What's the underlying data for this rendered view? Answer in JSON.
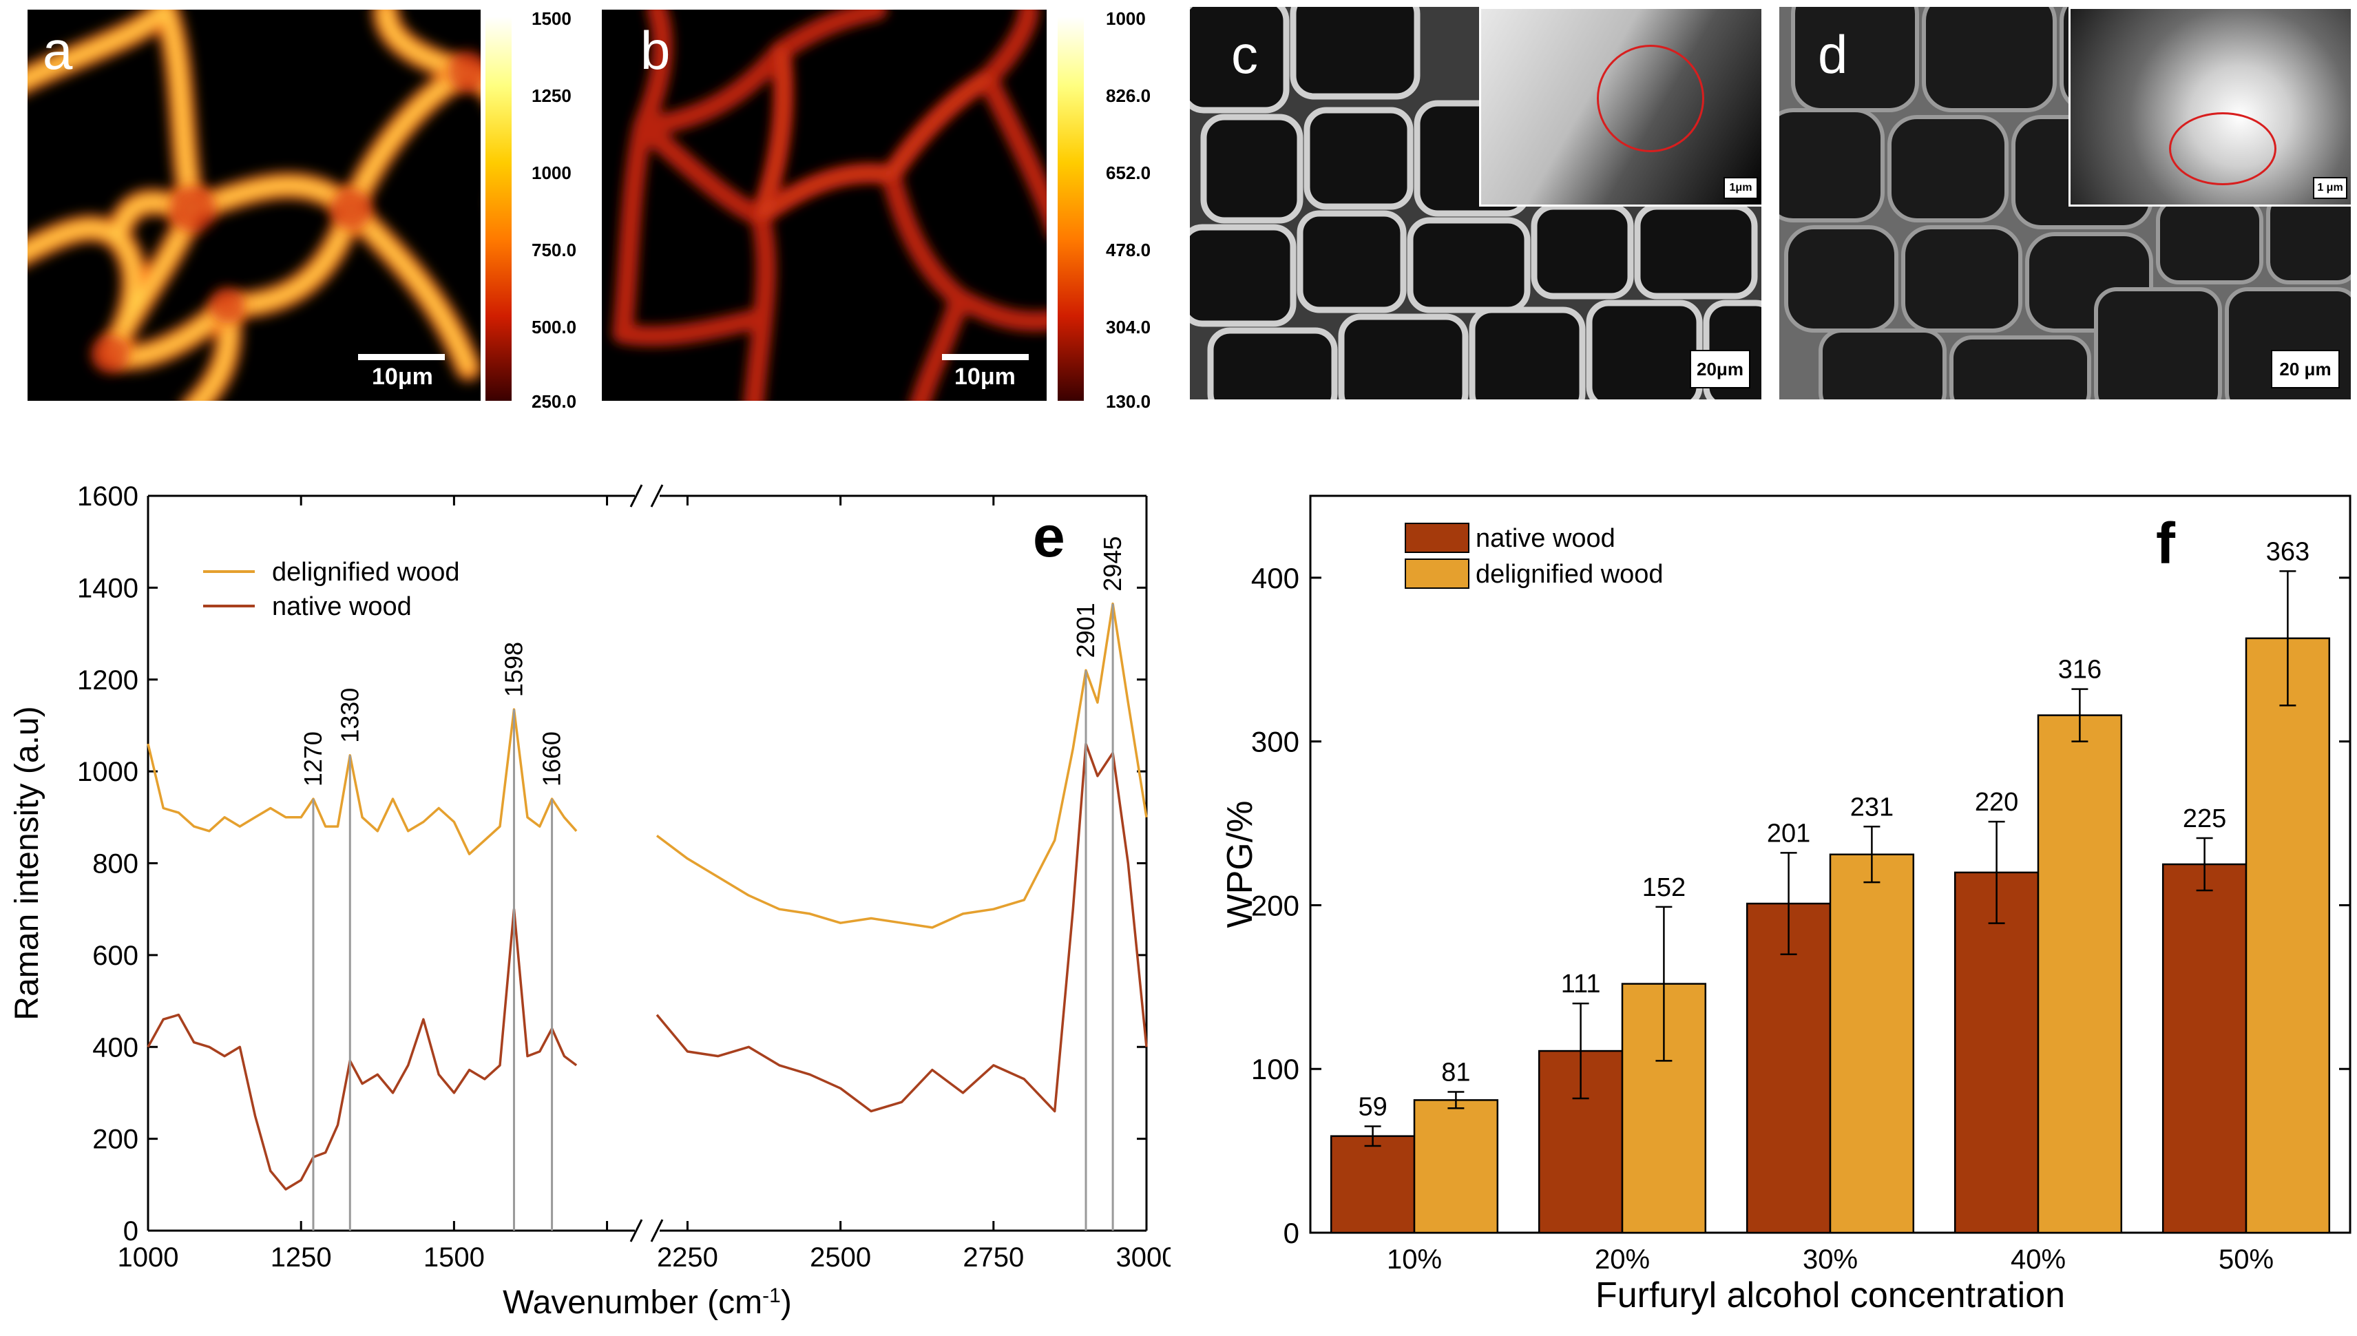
{
  "panels": {
    "a": {
      "letter": "a",
      "scalebar": "10μm",
      "colorbar_ticks": [
        "1500",
        "1250",
        "1000",
        "750.0",
        "500.0",
        "250.0"
      ]
    },
    "b": {
      "letter": "b",
      "scalebar": "10μm",
      "colorbar_ticks": [
        "1000",
        "826.0",
        "652.0",
        "478.0",
        "304.0",
        "130.0"
      ]
    },
    "c": {
      "letter": "c",
      "scalebar": "20μm",
      "inset_scalebar": "1μm"
    },
    "d": {
      "letter": "d",
      "scalebar": "20 μm",
      "inset_scalebar": "1 μm"
    }
  },
  "colors": {
    "native": "#a53a0c",
    "delignified": "#e5a02e",
    "native_line": "#a8401e",
    "delignified_line": "#e5a02e",
    "marker": "#9a9a9a"
  },
  "chart_data": [
    {
      "type": "line",
      "panel_letter": "e",
      "xlabel": "Wavenumber (cm",
      "xlabel_sup": "-1",
      "xlabel_end": ")",
      "ylabel": "Raman intensity (a.u)",
      "ylim": [
        0,
        1600
      ],
      "yticks": [
        "0",
        "200",
        "400",
        "600",
        "800",
        "1000",
        "1200",
        "1400",
        "1600"
      ],
      "xaxis_break": [
        1800,
        2200
      ],
      "xticks": [
        "1000",
        "1250",
        "1500",
        "",
        "2250",
        "2500",
        "2750",
        "3000"
      ],
      "legend_position": "top-left",
      "series": [
        {
          "name": "delignified wood",
          "x": [
            1000,
            1025,
            1050,
            1075,
            1100,
            1125,
            1150,
            1175,
            1200,
            1225,
            1250,
            1270,
            1290,
            1310,
            1330,
            1350,
            1375,
            1400,
            1425,
            1450,
            1475,
            1500,
            1525,
            1550,
            1575,
            1598,
            1620,
            1640,
            1660,
            1680,
            1700,
            2200,
            2250,
            2300,
            2350,
            2400,
            2450,
            2500,
            2550,
            2600,
            2650,
            2700,
            2750,
            2800,
            2850,
            2880,
            2901,
            2920,
            2945,
            2970,
            3000
          ],
          "y": [
            1060,
            920,
            910,
            880,
            870,
            900,
            880,
            900,
            920,
            900,
            900,
            940,
            880,
            880,
            1035,
            900,
            870,
            940,
            870,
            890,
            920,
            890,
            820,
            850,
            880,
            1135,
            900,
            880,
            940,
            900,
            870,
            860,
            810,
            770,
            730,
            700,
            690,
            670,
            680,
            670,
            660,
            690,
            700,
            720,
            850,
            1050,
            1220,
            1150,
            1365,
            1150,
            900
          ]
        },
        {
          "name": "native wood",
          "x": [
            1000,
            1025,
            1050,
            1075,
            1100,
            1125,
            1150,
            1175,
            1200,
            1225,
            1250,
            1270,
            1290,
            1310,
            1330,
            1350,
            1375,
            1400,
            1425,
            1450,
            1475,
            1500,
            1525,
            1550,
            1575,
            1598,
            1620,
            1640,
            1660,
            1680,
            1700,
            2200,
            2250,
            2300,
            2350,
            2400,
            2450,
            2500,
            2550,
            2600,
            2650,
            2700,
            2750,
            2800,
            2850,
            2880,
            2901,
            2920,
            2945,
            2970,
            3000
          ],
          "y": [
            400,
            460,
            470,
            410,
            400,
            380,
            400,
            250,
            130,
            90,
            110,
            160,
            170,
            230,
            370,
            320,
            340,
            300,
            360,
            460,
            340,
            300,
            350,
            330,
            360,
            700,
            380,
            390,
            440,
            380,
            360,
            470,
            390,
            380,
            400,
            360,
            340,
            310,
            260,
            280,
            350,
            300,
            360,
            330,
            260,
            700,
            1060,
            990,
            1040,
            800,
            400
          ]
        }
      ],
      "markers": [
        "1270",
        "1330",
        "1598",
        "1660",
        "2901",
        "2945"
      ]
    },
    {
      "type": "bar",
      "panel_letter": "f",
      "xlabel": "Furfuryl alcohol  concentration",
      "ylabel": "WPG/%",
      "ylim": [
        0,
        450
      ],
      "yticks": [
        "0",
        "100",
        "200",
        "300",
        "400"
      ],
      "categories": [
        "10%",
        "20%",
        "30%",
        "40%",
        "50%"
      ],
      "legend_position": "top-left",
      "series": [
        {
          "name": "native wood",
          "values": [
            59,
            111,
            201,
            220,
            225
          ],
          "errors": [
            6,
            29,
            31,
            31,
            16
          ],
          "labels": [
            "59",
            "111",
            "201",
            "220",
            "225"
          ]
        },
        {
          "name": "delignified wood",
          "values": [
            81,
            152,
            231,
            316,
            363
          ],
          "errors": [
            5,
            47,
            17,
            16,
            41
          ],
          "labels": [
            "81",
            "152",
            "231",
            "316",
            "363"
          ]
        }
      ]
    }
  ]
}
